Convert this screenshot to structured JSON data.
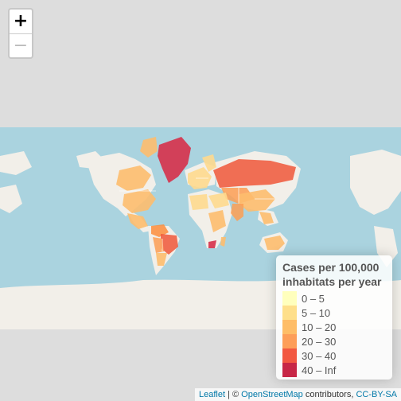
{
  "zoom": {
    "in_label": "+",
    "out_label": "−"
  },
  "legend": {
    "title_line1": "Cases per 100,000",
    "title_line2": "inhabitats per year",
    "items": [
      {
        "label": "0 – 5",
        "color": "#ffffb2"
      },
      {
        "label": "5 – 10",
        "color": "#fed976"
      },
      {
        "label": "10 – 20",
        "color": "#feb24c"
      },
      {
        "label": "20 – 30",
        "color": "#fd8d3c"
      },
      {
        "label": "30 – 40",
        "color": "#f03b20"
      },
      {
        "label": "40 – Inf",
        "color": "#bd0026"
      }
    ]
  },
  "attribution": {
    "leaflet": "Leaflet",
    "separator": " | © ",
    "osm": "OpenStreetMap",
    "contributors": " contributors, ",
    "license": "CC-BY-SA"
  },
  "colors": {
    "ocean": "#aad3df",
    "land": "#f2efe9",
    "antarctica": "#f2efe9",
    "background": "#dddddd"
  }
}
